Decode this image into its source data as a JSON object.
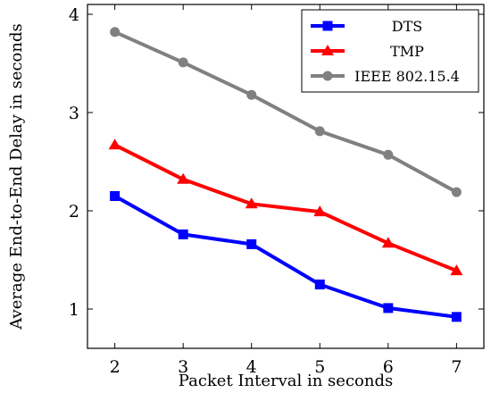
{
  "chart_data": {
    "type": "line",
    "xlabel": "Packet Interval in seconds",
    "ylabel": "Average End-to-End Delay in seconds",
    "x": [
      2,
      3,
      4,
      5,
      6,
      7
    ],
    "xticks": [
      "2",
      "3",
      "4",
      "5",
      "6",
      "7"
    ],
    "yticks": [
      "1",
      "2",
      "3",
      "4"
    ],
    "xlim": [
      1.6,
      7.4
    ],
    "ylim": [
      0.6,
      4.1
    ],
    "grid": false,
    "legend_position": "top-right",
    "series": [
      {
        "name": "DTS",
        "values": [
          2.15,
          1.76,
          1.66,
          1.25,
          1.01,
          0.92
        ],
        "color": "#0000ff",
        "marker": "square"
      },
      {
        "name": "TMP",
        "values": [
          2.67,
          2.32,
          2.07,
          1.99,
          1.67,
          1.39
        ],
        "color": "#ff0000",
        "marker": "triangle"
      },
      {
        "name": "IEEE 802.15.4",
        "values": [
          3.82,
          3.51,
          3.18,
          2.81,
          2.57,
          2.19
        ],
        "color": "#808080",
        "marker": "circle"
      }
    ]
  }
}
